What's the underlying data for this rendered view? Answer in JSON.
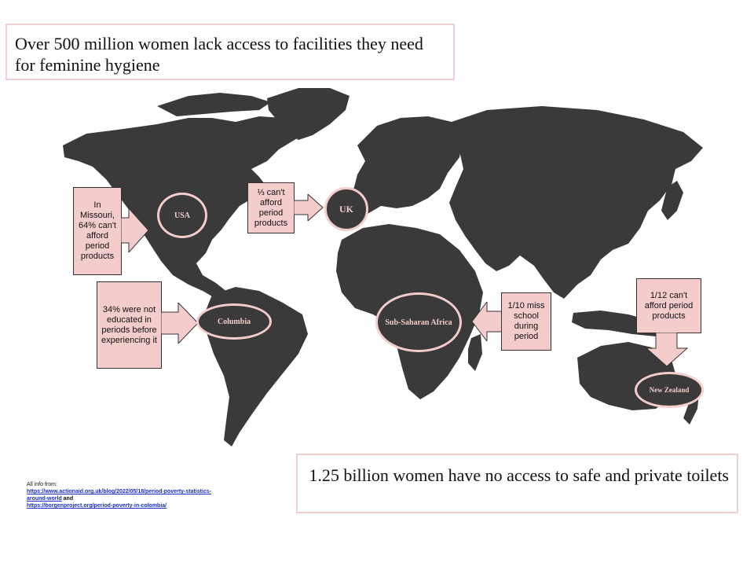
{
  "title": "Over 500 million women lack access to facilities they need for feminine hygiene",
  "bottom_statement": "1.25 billion women have no access to safe and private toilets",
  "regions": {
    "usa": {
      "label": "USA",
      "note": "In Missouri, 64% can't afford period products"
    },
    "uk": {
      "label": "UK",
      "note": "⅓ can't afford period products"
    },
    "columbia": {
      "label": "Columbia",
      "note": "34% were not educated in periods before experiencing it"
    },
    "africa": {
      "label": "Sub-Saharan Africa",
      "note": "1/10 miss school during period"
    },
    "new_zealand": {
      "label": "New Zealand",
      "note": "1/12 can't afford period products"
    }
  },
  "sources": {
    "prefix": "All info from:",
    "link1": "https://www.actionaid.org.uk/blog/2022/05/18/period-poverty-statistics-around-world",
    "joiner": " and ",
    "link2": "https://borgenproject.org/period-poverty-in-colombia/"
  },
  "colors": {
    "land": "#3a3a3a",
    "accent": "#f4cccc",
    "border": "#f0d0d0",
    "link": "#1a2fbf"
  }
}
